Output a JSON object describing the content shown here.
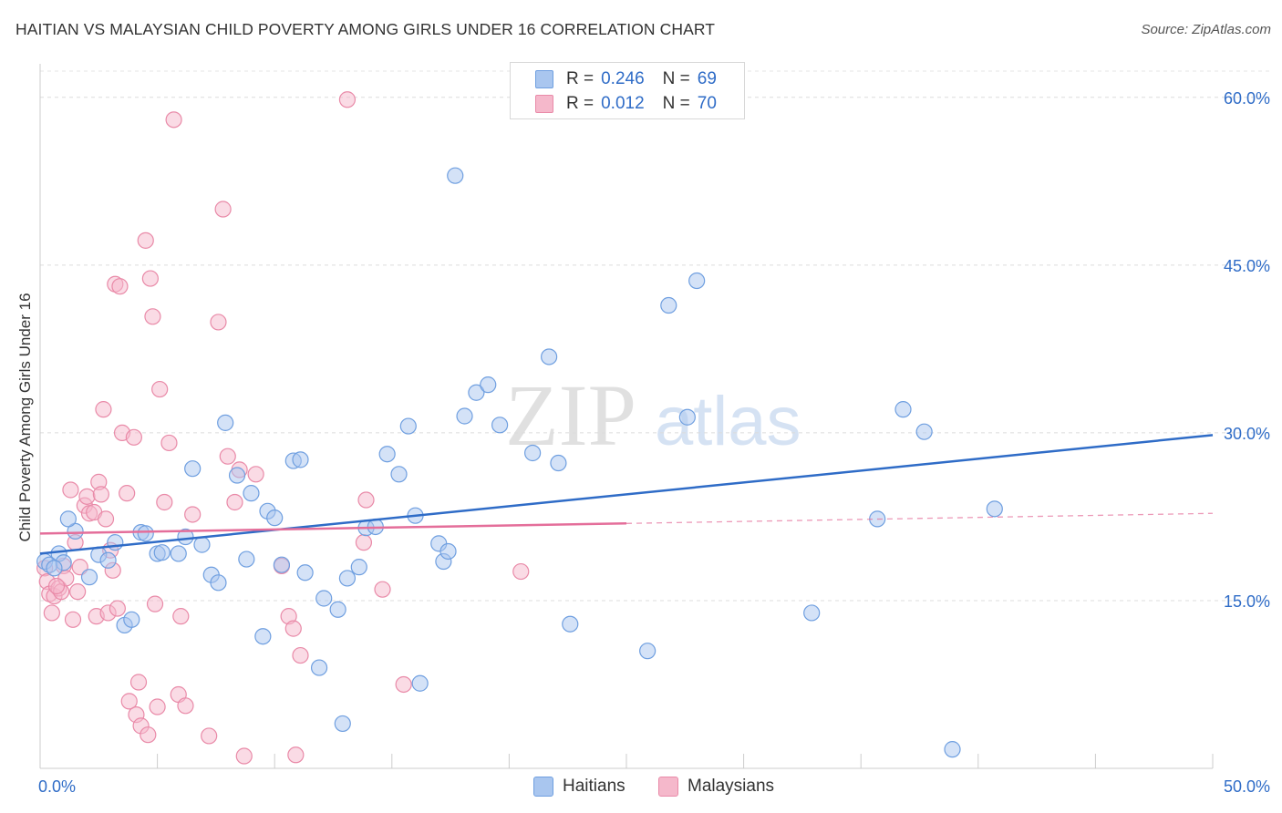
{
  "title": "HAITIAN VS MALAYSIAN CHILD POVERTY AMONG GIRLS UNDER 16 CORRELATION CHART",
  "source": "Source: ZipAtlas.com",
  "watermark": {
    "zip": "ZIP",
    "atlas": "atlas"
  },
  "legend": {
    "rows": [
      {
        "r_label": "R =",
        "r_value": "0.246",
        "n_label": "N =",
        "n_value": "69",
        "color": "#a9c6ef",
        "stroke": "#6f9fe0"
      },
      {
        "r_label": "R =",
        "r_value": "0.012",
        "n_label": "N =",
        "n_value": "70",
        "color": "#f5b8cb",
        "stroke": "#e98aa8"
      }
    ]
  },
  "bottom_legend": {
    "haitians": "Haitians",
    "malaysians": "Malaysians"
  },
  "chart_data": {
    "type": "scatter",
    "xlabel": "",
    "ylabel": "Child Poverty Among Girls Under 16",
    "xlim": [
      0,
      50
    ],
    "ylim": [
      0,
      63
    ],
    "x_tick_labels": [
      "0.0%",
      "50.0%"
    ],
    "y_ticks": [
      15,
      30,
      45,
      60
    ],
    "y_tick_labels": [
      "15.0%",
      "30.0%",
      "45.0%",
      "60.0%"
    ],
    "grid": true,
    "series": [
      {
        "name": "Haitians",
        "color": "#a9c6ef",
        "stroke": "#6f9fe0",
        "trend": {
          "x": [
            0,
            50
          ],
          "y": [
            19.2,
            29.8
          ],
          "color": "#2f6cc7",
          "dashed_from": null
        },
        "points": [
          [
            0.2,
            18.5
          ],
          [
            0.4,
            18.2
          ],
          [
            0.8,
            19.2
          ],
          [
            1.0,
            18.4
          ],
          [
            1.5,
            21.2
          ],
          [
            2.1,
            17.1
          ],
          [
            2.5,
            19.1
          ],
          [
            2.9,
            18.6
          ],
          [
            3.2,
            20.2
          ],
          [
            3.6,
            12.8
          ],
          [
            3.9,
            13.3
          ],
          [
            4.3,
            21.1
          ],
          [
            4.5,
            21.0
          ],
          [
            5.0,
            19.2
          ],
          [
            5.2,
            19.3
          ],
          [
            5.9,
            19.2
          ],
          [
            6.2,
            20.7
          ],
          [
            6.5,
            26.8
          ],
          [
            6.9,
            20.0
          ],
          [
            7.3,
            17.3
          ],
          [
            7.6,
            16.6
          ],
          [
            7.9,
            30.9
          ],
          [
            8.4,
            26.2
          ],
          [
            8.8,
            18.7
          ],
          [
            9.0,
            24.6
          ],
          [
            9.5,
            11.8
          ],
          [
            9.7,
            23.0
          ],
          [
            10.0,
            22.4
          ],
          [
            10.3,
            18.2
          ],
          [
            10.8,
            27.5
          ],
          [
            11.1,
            27.6
          ],
          [
            11.3,
            17.5
          ],
          [
            11.9,
            9.0
          ],
          [
            12.1,
            15.2
          ],
          [
            12.7,
            14.2
          ],
          [
            12.9,
            4.0
          ],
          [
            13.1,
            17.0
          ],
          [
            13.6,
            18.0
          ],
          [
            13.9,
            21.5
          ],
          [
            14.3,
            21.6
          ],
          [
            14.8,
            28.1
          ],
          [
            15.3,
            26.3
          ],
          [
            15.7,
            30.6
          ],
          [
            16.0,
            22.6
          ],
          [
            16.2,
            7.6
          ],
          [
            17.0,
            20.1
          ],
          [
            17.2,
            18.5
          ],
          [
            17.4,
            19.4
          ],
          [
            17.7,
            53.0
          ],
          [
            18.1,
            31.5
          ],
          [
            18.6,
            33.6
          ],
          [
            19.1,
            34.3
          ],
          [
            19.6,
            30.7
          ],
          [
            21.0,
            28.2
          ],
          [
            21.7,
            36.8
          ],
          [
            22.1,
            27.3
          ],
          [
            22.6,
            12.9
          ],
          [
            25.9,
            10.5
          ],
          [
            26.8,
            41.4
          ],
          [
            27.6,
            31.4
          ],
          [
            28.0,
            43.6
          ],
          [
            32.9,
            13.9
          ],
          [
            35.7,
            22.3
          ],
          [
            36.8,
            32.1
          ],
          [
            37.7,
            30.1
          ],
          [
            38.9,
            1.7
          ],
          [
            40.7,
            23.2
          ],
          [
            1.2,
            22.3
          ],
          [
            0.6,
            17.9
          ]
        ]
      },
      {
        "name": "Malaysians",
        "color": "#f5b8cb",
        "stroke": "#e98aa8",
        "trend": {
          "x": [
            0,
            50
          ],
          "y": [
            21.0,
            22.8
          ],
          "color": "#e46e9a",
          "dashed_from": 25
        },
        "points": [
          [
            0.2,
            17.9
          ],
          [
            0.3,
            16.7
          ],
          [
            0.4,
            15.6
          ],
          [
            0.5,
            13.9
          ],
          [
            0.6,
            15.4
          ],
          [
            0.8,
            16.1
          ],
          [
            0.9,
            15.8
          ],
          [
            1.0,
            18.1
          ],
          [
            1.1,
            17.0
          ],
          [
            1.3,
            24.9
          ],
          [
            1.4,
            13.3
          ],
          [
            1.5,
            20.2
          ],
          [
            1.7,
            18.0
          ],
          [
            1.9,
            23.5
          ],
          [
            2.0,
            24.3
          ],
          [
            2.1,
            22.8
          ],
          [
            2.3,
            22.9
          ],
          [
            2.4,
            13.6
          ],
          [
            2.5,
            25.6
          ],
          [
            2.6,
            24.5
          ],
          [
            2.7,
            32.1
          ],
          [
            2.8,
            22.3
          ],
          [
            2.9,
            13.9
          ],
          [
            3.0,
            19.5
          ],
          [
            3.1,
            17.7
          ],
          [
            3.2,
            43.3
          ],
          [
            3.3,
            14.3
          ],
          [
            3.4,
            43.1
          ],
          [
            3.5,
            30.0
          ],
          [
            3.7,
            24.6
          ],
          [
            3.8,
            6.0
          ],
          [
            4.0,
            29.6
          ],
          [
            4.1,
            4.8
          ],
          [
            4.2,
            7.7
          ],
          [
            4.3,
            3.8
          ],
          [
            4.5,
            47.2
          ],
          [
            4.6,
            3.0
          ],
          [
            4.7,
            43.8
          ],
          [
            4.8,
            40.4
          ],
          [
            4.9,
            14.7
          ],
          [
            5.0,
            5.5
          ],
          [
            5.1,
            33.9
          ],
          [
            5.3,
            23.8
          ],
          [
            5.5,
            29.1
          ],
          [
            5.7,
            58.0
          ],
          [
            5.9,
            6.6
          ],
          [
            6.0,
            13.6
          ],
          [
            6.2,
            5.6
          ],
          [
            6.5,
            22.7
          ],
          [
            7.2,
            2.9
          ],
          [
            7.6,
            39.9
          ],
          [
            7.8,
            50.0
          ],
          [
            8.0,
            27.9
          ],
          [
            8.3,
            23.8
          ],
          [
            8.5,
            26.7
          ],
          [
            8.7,
            1.1
          ],
          [
            9.2,
            26.3
          ],
          [
            10.3,
            18.1
          ],
          [
            10.6,
            13.6
          ],
          [
            10.8,
            12.5
          ],
          [
            10.9,
            1.2
          ],
          [
            11.1,
            10.1
          ],
          [
            13.1,
            59.8
          ],
          [
            13.8,
            20.2
          ],
          [
            13.9,
            24.0
          ],
          [
            14.6,
            16.0
          ],
          [
            15.5,
            7.5
          ],
          [
            20.5,
            17.6
          ],
          [
            0.7,
            16.3
          ],
          [
            1.6,
            15.8
          ]
        ]
      }
    ]
  }
}
